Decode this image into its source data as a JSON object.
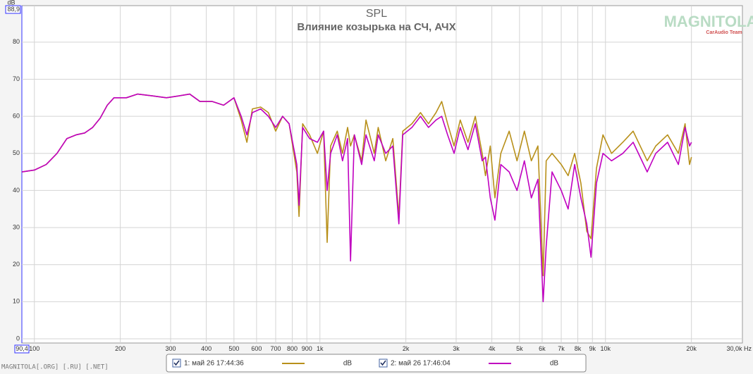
{
  "chart_data": {
    "type": "line",
    "title": "SPL",
    "subtitle": "Влияние козырька на СЧ, АЧХ",
    "y_label": "dB",
    "watermark": "MAGNITOLA",
    "watermark_sub": "CarAudio Team",
    "footer": "MAGNITOLA[.ORG] [.RU] [.NET]",
    "log_x": true,
    "grid": true,
    "xlim": [
      90.4,
      30000
    ],
    "ylim": [
      0,
      88.9
    ],
    "xticks": [
      {
        "value": 90.4,
        "label": "90,4"
      },
      100,
      200,
      300,
      400,
      500,
      600,
      700,
      800,
      900,
      {
        "value": 1000,
        "label": "1k"
      },
      {
        "value": 2000,
        "label": "2k"
      },
      {
        "value": 3000,
        "label": "3k"
      },
      {
        "value": 4000,
        "label": "4k"
      },
      {
        "value": 5000,
        "label": "5k"
      },
      {
        "value": 6000,
        "label": "6k"
      },
      {
        "value": 7000,
        "label": "7k"
      },
      {
        "value": 8000,
        "label": "8k"
      },
      {
        "value": 9000,
        "label": "9k"
      },
      {
        "value": 10000,
        "label": "10k"
      },
      {
        "value": 20000,
        "label": "20k"
      },
      {
        "value": 30000,
        "label": "30,0k Hz"
      }
    ],
    "yticks": [
      0,
      10,
      20,
      30,
      40,
      50,
      60,
      70,
      80,
      {
        "value": 88.9,
        "label": "88,9"
      }
    ],
    "x": [
      90.4,
      100,
      110,
      120,
      130,
      140,
      150,
      160,
      170,
      180,
      190,
      210,
      230,
      260,
      290,
      320,
      350,
      380,
      420,
      460,
      500,
      530,
      555,
      580,
      620,
      660,
      700,
      740,
      780,
      830,
      845,
      870,
      920,
      980,
      1030,
      1060,
      1090,
      1150,
      1200,
      1250,
      1280,
      1320,
      1400,
      1450,
      1550,
      1600,
      1700,
      1800,
      1890,
      1950,
      2100,
      2250,
      2400,
      2550,
      2670,
      2800,
      2950,
      3100,
      3300,
      3500,
      3700,
      3800,
      3950,
      4100,
      4300,
      4600,
      4900,
      5200,
      5500,
      5800,
      6050,
      6200,
      6500,
      7000,
      7400,
      7800,
      8200,
      8600,
      8900,
      9300,
      9800,
      10500,
      11500,
      12500,
      14000,
      15000,
      16500,
      18000,
      19000,
      19700,
      20000
    ],
    "series": [
      {
        "name": "1: май 26 17:44:36",
        "unit": "dB",
        "color": "#b8901a",
        "values": [
          45,
          45.5,
          47,
          50,
          54,
          55,
          55.5,
          57,
          59.5,
          63,
          65,
          65,
          66,
          65.5,
          65,
          65.5,
          66,
          64,
          64,
          63,
          65,
          59,
          53,
          62,
          62.5,
          61,
          56,
          60,
          58,
          45,
          33,
          58,
          55,
          50,
          56,
          26,
          52,
          56,
          50,
          57,
          52,
          55,
          48,
          59,
          50,
          57,
          48,
          54,
          33,
          56,
          58,
          61,
          58,
          61,
          64,
          58,
          52,
          59,
          53,
          60,
          50,
          44,
          52,
          38,
          50,
          56,
          48,
          56,
          48,
          52,
          17,
          48,
          50,
          47,
          44,
          50,
          42,
          29,
          27,
          46,
          55,
          50,
          53,
          56,
          48,
          52,
          55,
          50,
          58,
          47,
          49
        ]
      },
      {
        "name": "2: май 26 17:46:04",
        "unit": "dB",
        "color": "#c000c0",
        "values": [
          45,
          45.5,
          47,
          50,
          54,
          55,
          55.5,
          57,
          59.5,
          63,
          65,
          65,
          66,
          65.5,
          65,
          65.5,
          66,
          64,
          64,
          63,
          65,
          60,
          55,
          61,
          62,
          60,
          57,
          60,
          58,
          47,
          36,
          57,
          54,
          53,
          56,
          40,
          50,
          55,
          48,
          54,
          21,
          55,
          47,
          55,
          48,
          55,
          50,
          52,
          31,
          55,
          57,
          60,
          57,
          59,
          60,
          55,
          50,
          57,
          51,
          58,
          48,
          49,
          38,
          32,
          47,
          45,
          40,
          48,
          38,
          43,
          10,
          25,
          45,
          40,
          35,
          47,
          38,
          31,
          22,
          42,
          50,
          48,
          50,
          53,
          45,
          50,
          53,
          47,
          57,
          52,
          53
        ]
      }
    ]
  }
}
